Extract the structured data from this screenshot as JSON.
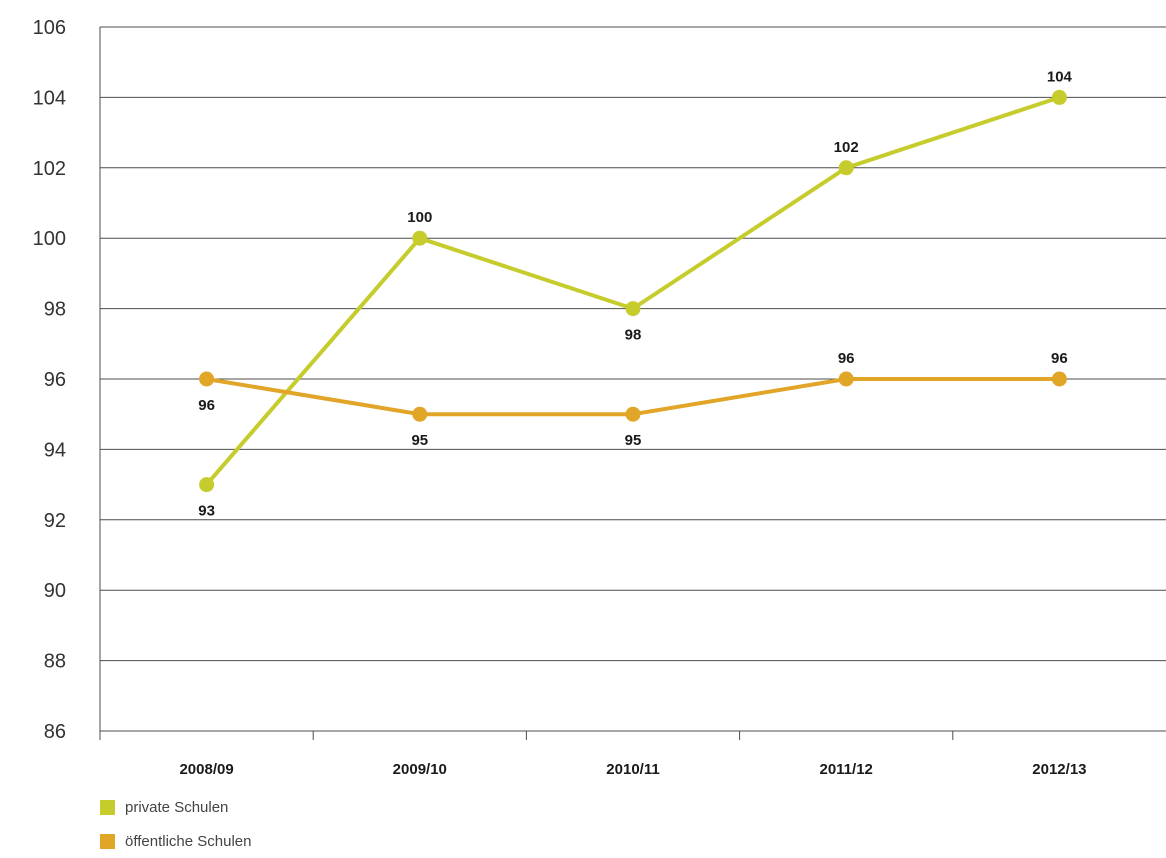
{
  "chart_data": {
    "type": "line",
    "categories": [
      "2008/09",
      "2009/10",
      "2010/11",
      "2011/12",
      "2012/13"
    ],
    "series": [
      {
        "name": "private Schulen",
        "values": [
          93,
          100,
          98,
          102,
          104
        ],
        "color": "#c5cc2c"
      },
      {
        "name": "öffentliche Schulen",
        "values": [
          96,
          95,
          95,
          96,
          96
        ],
        "color": "#e1a528"
      }
    ],
    "y_ticks": [
      86,
      88,
      90,
      92,
      94,
      96,
      98,
      100,
      102,
      104,
      106
    ],
    "ylim": [
      86,
      106
    ],
    "grid": true,
    "legend_position": "bottom-left"
  }
}
